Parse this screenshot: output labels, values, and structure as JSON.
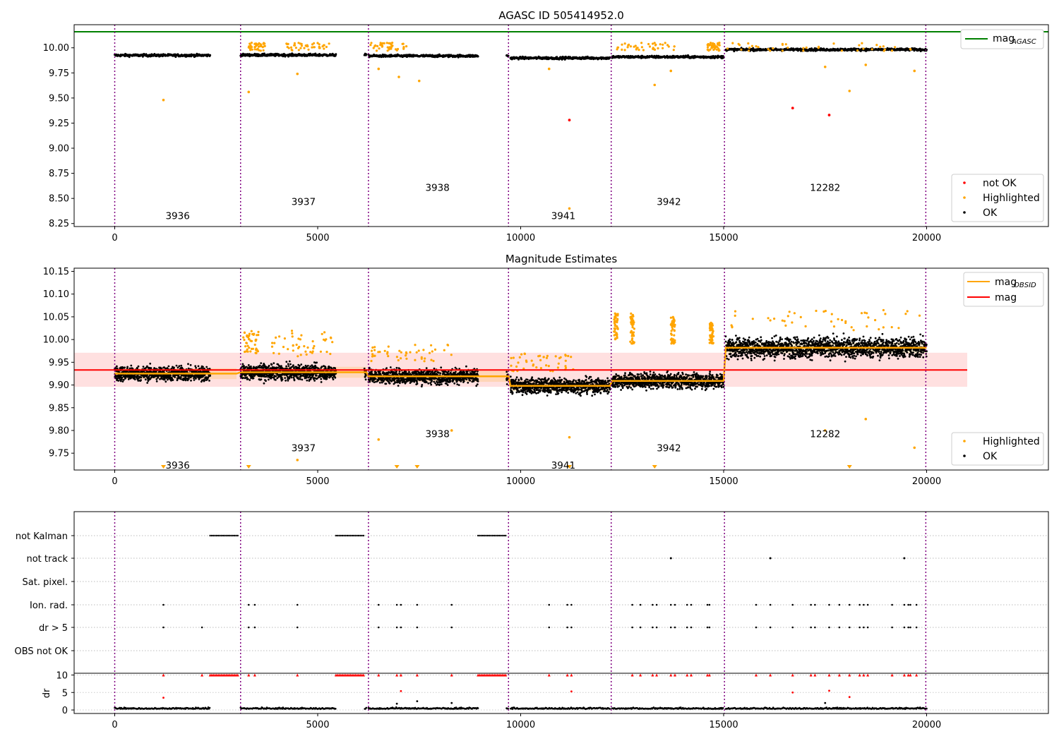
{
  "chart_data": [
    {
      "type": "scatter",
      "panel": "top",
      "title": "AGASC ID 505414952.0",
      "xlim": [
        -1000,
        23000
      ],
      "ylim": [
        8.22,
        10.23
      ],
      "xticks": [
        0,
        5000,
        10000,
        15000,
        20000
      ],
      "yticks": [
        8.25,
        8.5,
        8.75,
        9.0,
        9.25,
        9.5,
        9.75,
        10.0
      ],
      "ytick_labels": [
        "8.25",
        "8.50",
        "8.75",
        "9.00",
        "9.25",
        "9.50",
        "9.75",
        "10.00"
      ],
      "mag_agasc": 10.16,
      "series": [
        {
          "name": "not OK",
          "color": "#ff0000",
          "points": [
            [
              11200,
              9.28
            ],
            [
              16700,
              9.4
            ],
            [
              17600,
              9.33
            ]
          ]
        },
        {
          "name": "Highlighted",
          "color": "#ffa500",
          "points": [
            [
              1200,
              9.48
            ],
            [
              3300,
              9.56
            ],
            [
              4500,
              9.74
            ],
            [
              6500,
              9.79
            ],
            [
              7000,
              9.71
            ],
            [
              7500,
              9.67
            ],
            [
              10700,
              9.79
            ],
            [
              11200,
              8.4
            ],
            [
              13300,
              9.63
            ],
            [
              13700,
              9.77
            ],
            [
              17500,
              9.81
            ],
            [
              18100,
              9.57
            ],
            [
              18500,
              9.83
            ],
            [
              19700,
              9.77
            ]
          ]
        },
        {
          "name": "OK",
          "color": "#000000"
        }
      ],
      "legend": {
        "position": "lower-right",
        "entries": [
          "not OK",
          "Highlighted",
          "OK"
        ]
      },
      "top_legend": {
        "position": "top-right",
        "label_main": "mag",
        "label_sub": "AGASC",
        "color": "#008000"
      }
    },
    {
      "type": "scatter",
      "panel": "middle",
      "title": "Magnitude Estimates",
      "xlim": [
        -1000,
        23000
      ],
      "ylim": [
        9.713,
        10.157
      ],
      "xticks": [
        0,
        5000,
        10000,
        15000,
        20000
      ],
      "yticks": [
        9.75,
        9.8,
        9.85,
        9.9,
        9.95,
        10.0,
        10.05,
        10.1,
        10.15
      ],
      "ytick_labels": [
        "9.75",
        "9.80",
        "9.85",
        "9.90",
        "9.95",
        "10.00",
        "10.05",
        "10.10",
        "10.15"
      ],
      "mag": 9.933,
      "mag_band": [
        9.896,
        9.971
      ],
      "mag_band_xrange": [
        -1000,
        21000
      ],
      "obsid_segments": [
        {
          "obsid": "3936",
          "x": [
            0,
            3000
          ],
          "mag": 9.925
        },
        {
          "obsid": "3937",
          "x": [
            3100,
            6200
          ],
          "mag": 9.928
        },
        {
          "obsid": "3938",
          "x": [
            6250,
            9700
          ],
          "mag": 9.919
        },
        {
          "obsid": "3941",
          "x": [
            9750,
            12200
          ],
          "mag": 9.898
        },
        {
          "obsid": "3942",
          "x": [
            12250,
            15000
          ],
          "mag": 9.909
        },
        {
          "obsid": "12282",
          "x": [
            15050,
            20000
          ],
          "mag": 9.982
        }
      ],
      "legend": {
        "position": "lower-right",
        "entries": [
          "Highlighted",
          "OK"
        ]
      },
      "top_legend": {
        "position": "top-right",
        "entries": [
          {
            "main": "mag",
            "sub": "OBSID",
            "color": "#ffa500"
          },
          {
            "main": "mag",
            "sub": "",
            "color": "#ff0000"
          }
        ]
      }
    },
    {
      "type": "scatter",
      "panel": "flags",
      "xlim": [
        -1000,
        23000
      ],
      "xticks": [
        0,
        5000,
        10000,
        15000,
        20000
      ],
      "flag_labels": [
        "not Kalman",
        "not track",
        "Sat. pixel.",
        "Ion. rad.",
        "dr > 5",
        "OBS not OK"
      ],
      "dr_ylabel": "dr",
      "dr_ylim": [
        -1,
        10.5
      ],
      "dr_yticks": [
        0,
        5,
        10
      ],
      "not_kalman_ranges": [
        [
          2350,
          3050
        ],
        [
          5450,
          6150
        ],
        [
          8950,
          9650
        ]
      ],
      "not_track_points": [
        13700,
        16150,
        19450
      ]
    }
  ],
  "obsids": [
    {
      "label": "3936",
      "x": 1550,
      "top_y": 8.33,
      "mid_y": 9.724
    },
    {
      "label": "3937",
      "x": 4650,
      "top_y": 8.47,
      "mid_y": 9.762
    },
    {
      "label": "3938",
      "x": 7950,
      "top_y": 8.61,
      "mid_y": 9.793
    },
    {
      "label": "3941",
      "x": 11050,
      "top_y": 8.33,
      "mid_y": 9.724
    },
    {
      "label": "3942",
      "x": 13650,
      "top_y": 8.47,
      "mid_y": 9.762
    },
    {
      "label": "12282",
      "x": 17500,
      "top_y": 8.61,
      "mid_y": 9.793
    }
  ],
  "boundaries": [
    0,
    3100,
    6250,
    9700,
    12230,
    15020,
    19980
  ],
  "colors": {
    "ok": "#000000",
    "highlighted": "#ffa500",
    "not_ok": "#ff0000",
    "agasc": "#008000",
    "mag": "#ff0000",
    "obsid": "#ffa500",
    "boundary": "#800080"
  },
  "tick_labels_x": [
    "0",
    "5000",
    "10000",
    "15000",
    "20000"
  ],
  "dr_tick_labels": [
    "0",
    "5",
    "10"
  ]
}
